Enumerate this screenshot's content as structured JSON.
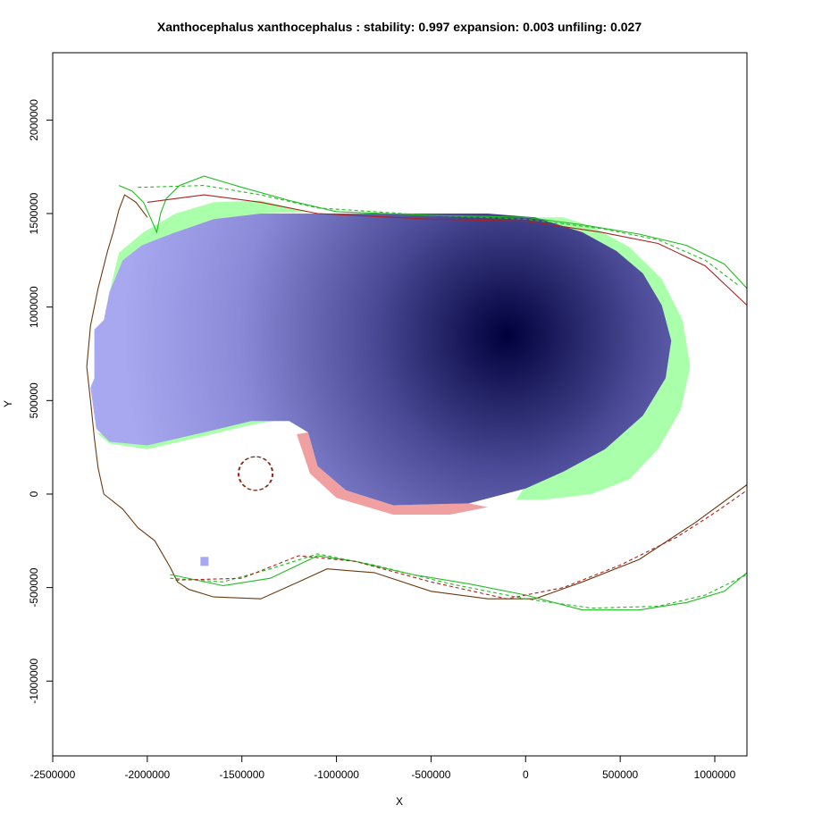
{
  "chart_data": {
    "type": "heatmap",
    "title": "Xanthocephalus xanthocephalus : stability: 0.997 expansion: 0.003 unfiling: 0.027",
    "xlabel": "X",
    "ylabel": "Y",
    "xlim": [
      -2500000,
      1170000
    ],
    "ylim": [
      -1400000,
      2360000
    ],
    "x_ticks": [
      -2500000,
      -2000000,
      -1500000,
      -1000000,
      -500000,
      0,
      500000,
      1000000
    ],
    "x_tick_labels": [
      "-2500000",
      "-2000000",
      "-1500000",
      "-1000000",
      "-500000",
      "0",
      "500000",
      "1000000"
    ],
    "y_ticks": [
      -1000000,
      -500000,
      0,
      500000,
      1000000,
      1500000,
      2000000
    ],
    "y_tick_labels": [
      "-1000000",
      "-500000",
      "0",
      "500000",
      "1000000",
      "1500000",
      "2000000"
    ],
    "density_peak": {
      "x": -100000,
      "y": 850000
    },
    "colors": {
      "stability_high": "#00003c",
      "stability_low": "#a8a8f0",
      "unfilling": "#aaffaa",
      "expansion": "#f0a0a0",
      "native_range": "#22bb22",
      "invaded_range": "#aa2222",
      "overlap_line": "#6b3a10"
    },
    "regions": {
      "stability": [
        [
          -2300000,
          570000
        ],
        [
          -2280000,
          620000
        ],
        [
          -2280000,
          880000
        ],
        [
          -2230000,
          930000
        ],
        [
          -2200000,
          1080000
        ],
        [
          -2130000,
          1250000
        ],
        [
          -2030000,
          1330000
        ],
        [
          -1930000,
          1370000
        ],
        [
          -1850000,
          1400000
        ],
        [
          -1650000,
          1470000
        ],
        [
          -1400000,
          1500000
        ],
        [
          -1100000,
          1500000
        ],
        [
          -700000,
          1500000
        ],
        [
          -200000,
          1500000
        ],
        [
          50000,
          1480000
        ],
        [
          300000,
          1400000
        ],
        [
          480000,
          1300000
        ],
        [
          620000,
          1180000
        ],
        [
          720000,
          1010000
        ],
        [
          770000,
          820000
        ],
        [
          740000,
          620000
        ],
        [
          620000,
          420000
        ],
        [
          420000,
          240000
        ],
        [
          200000,
          120000
        ],
        [
          0,
          30000
        ],
        [
          -300000,
          -50000
        ],
        [
          -700000,
          -60000
        ],
        [
          -950000,
          20000
        ],
        [
          -1100000,
          150000
        ],
        [
          -1150000,
          330000
        ],
        [
          -1250000,
          390000
        ],
        [
          -1450000,
          390000
        ],
        [
          -1700000,
          330000
        ],
        [
          -2000000,
          260000
        ],
        [
          -2200000,
          280000
        ],
        [
          -2270000,
          350000
        ]
      ],
      "unfilling": [
        [
          -2270000,
          330000
        ],
        [
          -2200000,
          270000
        ],
        [
          -2000000,
          240000
        ],
        [
          -1700000,
          310000
        ],
        [
          -1450000,
          370000
        ],
        [
          -1230000,
          410000
        ],
        [
          -1150000,
          380000
        ],
        [
          -1250000,
          410000
        ],
        [
          -1450000,
          420000
        ],
        [
          -1700000,
          350000
        ],
        [
          -2000000,
          300000
        ],
        [
          -2200000,
          310000
        ]
      ],
      "unfilling_east": [
        [
          50000,
          1480000
        ],
        [
          300000,
          1400000
        ],
        [
          480000,
          1300000
        ],
        [
          620000,
          1180000
        ],
        [
          720000,
          1010000
        ],
        [
          770000,
          820000
        ],
        [
          740000,
          620000
        ],
        [
          620000,
          420000
        ],
        [
          420000,
          240000
        ],
        [
          200000,
          120000
        ],
        [
          -10000,
          30000
        ],
        [
          -50000,
          -30000
        ],
        [
          100000,
          -30000
        ],
        [
          350000,
          0
        ],
        [
          550000,
          80000
        ],
        [
          700000,
          240000
        ],
        [
          820000,
          450000
        ],
        [
          870000,
          680000
        ],
        [
          830000,
          930000
        ],
        [
          720000,
          1150000
        ],
        [
          550000,
          1320000
        ],
        [
          350000,
          1430000
        ],
        [
          200000,
          1480000
        ]
      ],
      "unfilling_north": [
        [
          -2200000,
          1080000
        ],
        [
          -2130000,
          1250000
        ],
        [
          -2030000,
          1330000
        ],
        [
          -1930000,
          1370000
        ],
        [
          -1850000,
          1400000
        ],
        [
          -1650000,
          1470000
        ],
        [
          -1400000,
          1500000
        ],
        [
          -1150000,
          1510000
        ],
        [
          -1400000,
          1570000
        ],
        [
          -1650000,
          1560000
        ],
        [
          -1850000,
          1500000
        ],
        [
          -2020000,
          1400000
        ],
        [
          -2150000,
          1290000
        ]
      ],
      "expansion": [
        [
          -1150000,
          330000
        ],
        [
          -1100000,
          150000
        ],
        [
          -950000,
          20000
        ],
        [
          -700000,
          -60000
        ],
        [
          -300000,
          -50000
        ],
        [
          -200000,
          -70000
        ],
        [
          -400000,
          -110000
        ],
        [
          -700000,
          -110000
        ],
        [
          -1000000,
          -20000
        ],
        [
          -1140000,
          110000
        ],
        [
          -1210000,
          320000
        ]
      ],
      "isolated_cell": {
        "x": -1700000,
        "y": -360000
      }
    },
    "series": [
      {
        "color": "native",
        "style": "solid",
        "values": [
          [
            -2150000,
            1650000
          ],
          [
            -2080000,
            1620000
          ],
          [
            -2020000,
            1560000
          ],
          [
            -1980000,
            1470000
          ],
          [
            -1950000,
            1400000
          ],
          [
            -1930000,
            1500000
          ],
          [
            -1900000,
            1580000
          ],
          [
            -1830000,
            1650000
          ],
          [
            -1700000,
            1700000
          ],
          [
            -1500000,
            1640000
          ],
          [
            -1250000,
            1570000
          ],
          [
            -1000000,
            1510000
          ],
          [
            -500000,
            1490000
          ],
          [
            0,
            1480000
          ],
          [
            300000,
            1440000
          ],
          [
            600000,
            1390000
          ],
          [
            850000,
            1330000
          ],
          [
            1050000,
            1230000
          ],
          [
            1170000,
            1100000
          ]
        ]
      },
      {
        "color": "native",
        "style": "dashed",
        "values": [
          [
            -2050000,
            1640000
          ],
          [
            -1700000,
            1650000
          ],
          [
            -1400000,
            1600000
          ],
          [
            -1100000,
            1530000
          ],
          [
            -500000,
            1490000
          ],
          [
            0,
            1470000
          ],
          [
            400000,
            1420000
          ],
          [
            700000,
            1360000
          ],
          [
            950000,
            1250000
          ],
          [
            1120000,
            1120000
          ]
        ]
      },
      {
        "color": "invaded",
        "style": "solid",
        "values": [
          [
            -2000000,
            1560000
          ],
          [
            -1700000,
            1600000
          ],
          [
            -1400000,
            1560000
          ],
          [
            -1100000,
            1500000
          ],
          [
            -500000,
            1470000
          ],
          [
            0,
            1460000
          ],
          [
            400000,
            1400000
          ],
          [
            700000,
            1340000
          ],
          [
            950000,
            1220000
          ],
          [
            1170000,
            1010000
          ]
        ]
      },
      {
        "color": "overlap",
        "style": "solid",
        "values": [
          [
            -2320000,
            680000
          ],
          [
            -2300000,
            500000
          ],
          [
            -2280000,
            300000
          ],
          [
            -2260000,
            140000
          ],
          [
            -2230000,
            0
          ],
          [
            -2130000,
            -80000
          ],
          [
            -2050000,
            -180000
          ],
          [
            -1960000,
            -250000
          ],
          [
            -1880000,
            -390000
          ],
          [
            -1840000,
            -470000
          ],
          [
            -1780000,
            -510000
          ],
          [
            -1650000,
            -550000
          ],
          [
            -1400000,
            -560000
          ],
          [
            -1200000,
            -470000
          ],
          [
            -1050000,
            -400000
          ],
          [
            -800000,
            -420000
          ],
          [
            -500000,
            -520000
          ],
          [
            -200000,
            -560000
          ],
          [
            50000,
            -560000
          ],
          [
            300000,
            -470000
          ],
          [
            600000,
            -350000
          ],
          [
            900000,
            -150000
          ],
          [
            1170000,
            50000
          ]
        ]
      },
      {
        "color": "overlap",
        "style": "solid",
        "values": [
          [
            -2320000,
            680000
          ],
          [
            -2300000,
            900000
          ],
          [
            -2260000,
            1100000
          ],
          [
            -2210000,
            1300000
          ],
          [
            -2180000,
            1400000
          ],
          [
            -2150000,
            1520000
          ],
          [
            -2120000,
            1600000
          ],
          [
            -2060000,
            1560000
          ],
          [
            -2000000,
            1480000
          ]
        ]
      },
      {
        "color": "native",
        "style": "solid",
        "values": [
          [
            -1880000,
            -430000
          ],
          [
            -1600000,
            -490000
          ],
          [
            -1350000,
            -450000
          ],
          [
            -1100000,
            -330000
          ],
          [
            -900000,
            -360000
          ],
          [
            -600000,
            -430000
          ],
          [
            -300000,
            -480000
          ],
          [
            0,
            -540000
          ],
          [
            300000,
            -620000
          ],
          [
            600000,
            -620000
          ],
          [
            850000,
            -580000
          ],
          [
            1050000,
            -520000
          ],
          [
            1170000,
            -420000
          ]
        ]
      },
      {
        "color": "native",
        "style": "dashed",
        "values": [
          [
            -1880000,
            -450000
          ],
          [
            -1600000,
            -470000
          ],
          [
            -1350000,
            -400000
          ],
          [
            -1100000,
            -320000
          ],
          [
            -800000,
            -380000
          ],
          [
            -400000,
            -480000
          ],
          [
            0,
            -560000
          ],
          [
            350000,
            -610000
          ],
          [
            700000,
            -600000
          ],
          [
            950000,
            -540000
          ],
          [
            1170000,
            -430000
          ]
        ]
      },
      {
        "color": "invaded",
        "style": "dashed",
        "values": [
          [
            -1850000,
            -460000
          ],
          [
            -1500000,
            -450000
          ],
          [
            -1200000,
            -330000
          ],
          [
            -900000,
            -360000
          ],
          [
            -500000,
            -470000
          ],
          [
            -100000,
            -560000
          ],
          [
            200000,
            -500000
          ],
          [
            500000,
            -380000
          ],
          [
            800000,
            -230000
          ],
          [
            1000000,
            -100000
          ],
          [
            1170000,
            20000
          ]
        ]
      },
      {
        "color": "invaded",
        "style": "dashed",
        "circle": true,
        "values": [
          [
            -1430000,
            110000,
            90000
          ]
        ]
      }
    ]
  }
}
